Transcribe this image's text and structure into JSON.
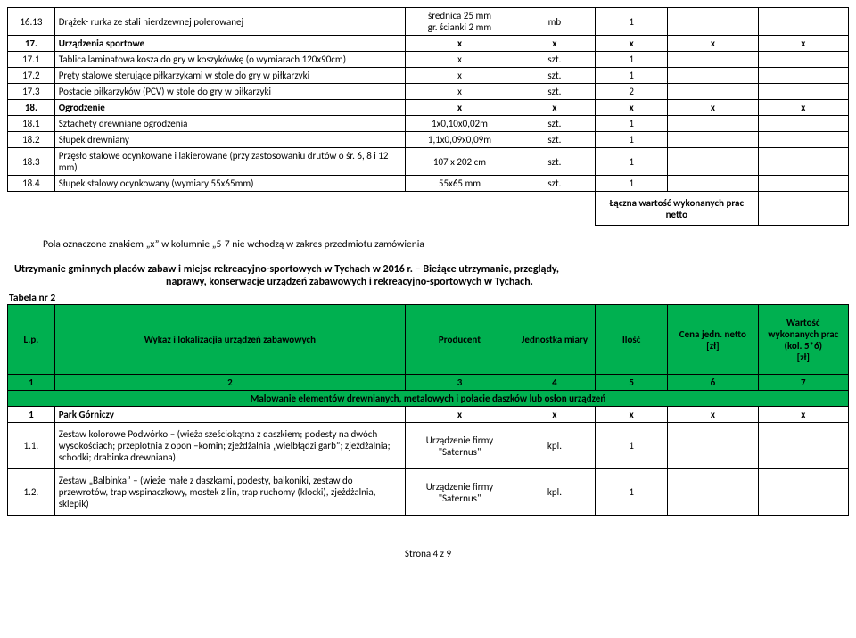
{
  "table1": {
    "rows": [
      {
        "no": "16.13",
        "desc": "Drążek- rurka ze stali nierdzewnej polerowanej",
        "prod": "średnica 25 mm\ngr. ścianki 2 mm",
        "unit": "mb",
        "qty": "1",
        "price": "",
        "val": ""
      },
      {
        "no": "17.",
        "desc": "Urządzenia sportowe",
        "prod": "x",
        "unit": "x",
        "qty": "x",
        "price": "x",
        "val": "x",
        "bold": true
      },
      {
        "no": "17.1",
        "desc": "Tablica laminatowa kosza do gry w koszykówkę (o wymiarach 120x90cm)",
        "prod": "x",
        "unit": "szt.",
        "qty": "1",
        "price": "",
        "val": ""
      },
      {
        "no": "17.2",
        "desc": "Pręty stalowe sterujące piłkarzykami w stole do gry w piłkarzyki",
        "prod": "x",
        "unit": "szt.",
        "qty": "1",
        "price": "",
        "val": ""
      },
      {
        "no": "17.3",
        "desc": "Postacie piłkarzyków (PCV) w stole do gry w piłkarzyki",
        "prod": "x",
        "unit": "szt.",
        "qty": "2",
        "price": "",
        "val": ""
      },
      {
        "no": "18.",
        "desc": "Ogrodzenie",
        "prod": "x",
        "unit": "x",
        "qty": "x",
        "price": "x",
        "val": "x",
        "bold": true
      },
      {
        "no": "18.1",
        "desc": "Sztachety drewniane ogrodzenia",
        "prod": "1x0,10x0,02m",
        "unit": "szt.",
        "qty": "1",
        "price": "",
        "val": ""
      },
      {
        "no": "18.2",
        "desc": "Słupek drewniany",
        "prod": "1,1x0,09x0,09m",
        "unit": "szt.",
        "qty": "1",
        "price": "",
        "val": ""
      },
      {
        "no": "18.3",
        "desc": "Przęsło stalowe ocynkowane i lakierowane (przy zastosowaniu drutów o śr. 6, 8 i 12 mm)",
        "prod": "107 x 202 cm",
        "unit": "szt.",
        "qty": "1",
        "price": "",
        "val": ""
      },
      {
        "no": "18.4",
        "desc": "Słupek stalowy ocynkowany (wymiary 55x65mm)",
        "prod": "55x65 mm",
        "unit": "szt.",
        "qty": "1",
        "price": "",
        "val": ""
      }
    ],
    "summary": "Łączna wartość wykonanych prac netto"
  },
  "note": "Pola oznaczone znakiem „x” w kolumnie „5-7 nie wchodzą w zakres przedmiotu zamówienia",
  "heading": {
    "line1": "Utrzymanie gminnych placów zabaw i miejsc rekreacyjno-sportowych  w Tychach w 2016 r. – Bieżące utrzymanie, przeglądy,",
    "line2": "naprawy, konserwacje  urządzeń zabawowych i rekreacyjno-sportowych  w Tychach."
  },
  "tabela_label": "Tabela nr 2",
  "table2": {
    "header": {
      "lp": "L.p.",
      "desc": "Wykaz i  lokalizacjia urządzeń zabawowych",
      "prod": "Producent",
      "unit": "Jednostka miary",
      "qty": "Ilość",
      "price": "Cena jedn. netto\n[zł]",
      "val": "Wartość wykonanych prac\n(kol. 5*6)\n[zł]"
    },
    "numrow": {
      "c1": "1",
      "c2": "2",
      "c3": "3",
      "c4": "4",
      "c5": "5",
      "c6": "6",
      "c7": "7"
    },
    "section": "Malowanie elementów drewnianych, metalowych i połacie daszków lub osłon urządzeń",
    "rows": [
      {
        "no": "1",
        "desc": "Park Górniczy",
        "prod": "x",
        "unit": "x",
        "qty": "x",
        "price": "x",
        "val": "x",
        "bold": true
      },
      {
        "no": "1.1.",
        "desc": "Zestaw kolorowe Podwórko – (wieża sześciokątna z daszkiem; podesty na dwóch wysokościach; przeplotnia z opon –komin; zjeżdżalnia „wielbłądzi garb”; zjeżdżalnia; schodki; drabinka drewniana)",
        "prod": "Urządzenie firmy \"Saternus\"",
        "unit": "kpl.",
        "qty": "1",
        "price": "",
        "val": ""
      },
      {
        "no": "1.2.",
        "desc": "Zestaw „Balbinka” – (wieże małe z daszkami, podesty, balkoniki, zestaw do przewrotów, trap wspinaczkowy, mostek z lin, trap ruchomy (klocki), zjeżdżalnia, sklepik)",
        "prod": "Urządzenie firmy \"Saternus\"",
        "unit": "kpl.",
        "qty": "1",
        "price": "",
        "val": ""
      }
    ]
  },
  "footer": "Strona 4 z 9",
  "colors": {
    "green": "#00b050"
  }
}
